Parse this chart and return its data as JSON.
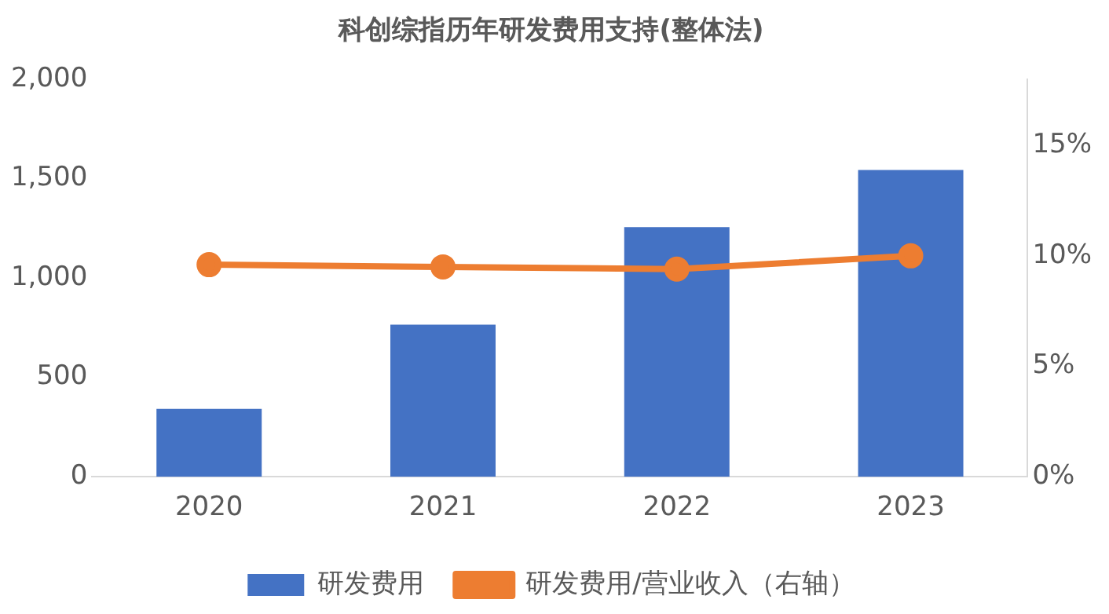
{
  "chart_data": {
    "type": "bar",
    "title": "科创综指历年研发费用支持(整体法)",
    "categories": [
      "2020",
      "2021",
      "2022",
      "2023"
    ],
    "series": [
      {
        "name": "研发费用",
        "color": "#4472c4",
        "values": [
          341,
          765,
          1256,
          1543
        ]
      },
      {
        "name": "研发费用/营业收入（右轴）",
        "type": "line",
        "axis": "y2",
        "color": "#ed7d31",
        "values": [
          9.6,
          9.5,
          9.4,
          10.0
        ],
        "marker": "circle"
      }
    ],
    "ylim": [
      0,
      2000
    ],
    "yticks": [
      0,
      500,
      {
        "value": 1000,
        "label": "1,000"
      },
      {
        "value": 1500,
        "label": "1,500"
      },
      {
        "value": 2000,
        "label": "2,000"
      }
    ],
    "y2lim": [
      0,
      18
    ],
    "y2ticks": [
      {
        "value": 0,
        "label": "0%"
      },
      {
        "value": 5,
        "label": "5%"
      },
      {
        "value": 10,
        "label": "10%"
      },
      {
        "value": 15,
        "label": "15%"
      }
    ],
    "grid": false,
    "legend": "bottom"
  }
}
